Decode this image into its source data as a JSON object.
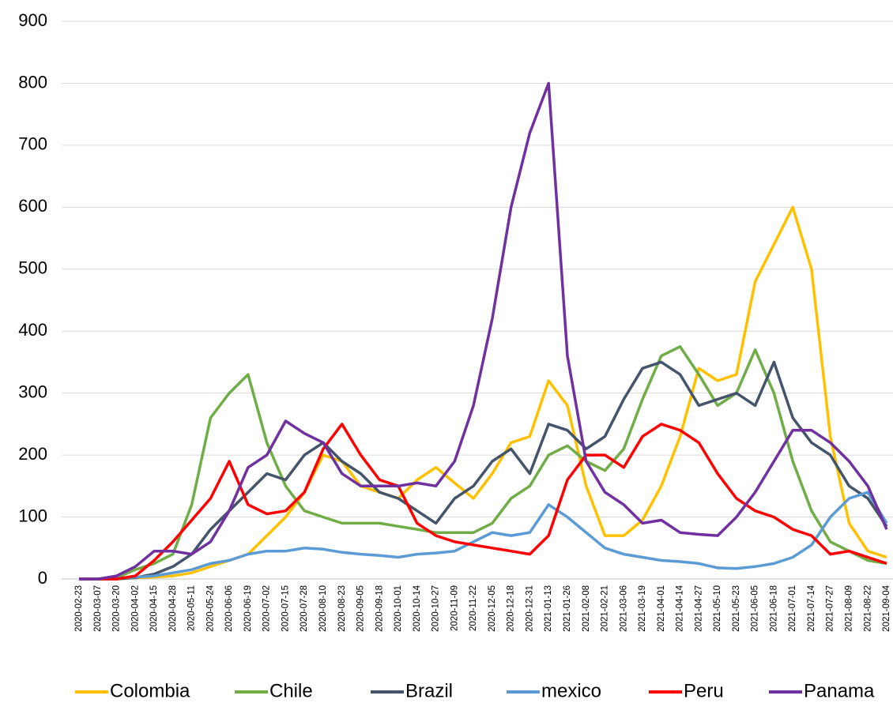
{
  "chart_data": {
    "type": "line",
    "categories": [
      "2020-02-23",
      "2020-03-07",
      "2020-03-20",
      "2020-04-02",
      "2020-04-15",
      "2020-04-28",
      "2020-05-11",
      "2020-05-24",
      "2020-06-06",
      "2020-06-19",
      "2020-07-02",
      "2020-07-15",
      "2020-07-28",
      "2020-08-10",
      "2020-08-23",
      "2020-09-05",
      "2020-09-18",
      "2020-10-01",
      "2020-10-14",
      "2020-10-27",
      "2020-11-09",
      "2020-11-22",
      "2020-12-05",
      "2020-12-18",
      "2020-12-31",
      "2021-01-13",
      "2021-01-26",
      "2021-02-08",
      "2021-02-21",
      "2021-03-06",
      "2021-03-19",
      "2021-04-01",
      "2021-04-14",
      "2021-04-27",
      "2021-05-10",
      "2021-05-23",
      "2021-06-05",
      "2021-06-18",
      "2021-07-01",
      "2021-07-14",
      "2021-07-27",
      "2021-08-09",
      "2021-08-22",
      "2021-09-04"
    ],
    "series": [
      {
        "name": "Colombia",
        "color": "#FFC000",
        "values": [
          0,
          0,
          0,
          2,
          3,
          5,
          10,
          20,
          30,
          40,
          70,
          100,
          140,
          200,
          190,
          150,
          140,
          130,
          160,
          180,
          155,
          130,
          170,
          220,
          230,
          320,
          280,
          150,
          70,
          70,
          95,
          150,
          230,
          340,
          320,
          330,
          480,
          540,
          600,
          500,
          230,
          90,
          45,
          35
        ]
      },
      {
        "name": "Chile",
        "color": "#70AD47",
        "values": [
          0,
          0,
          2,
          15,
          25,
          40,
          120,
          260,
          300,
          330,
          220,
          150,
          110,
          100,
          90,
          90,
          90,
          85,
          80,
          75,
          75,
          75,
          90,
          130,
          150,
          200,
          215,
          190,
          175,
          210,
          290,
          360,
          375,
          330,
          280,
          300,
          370,
          300,
          190,
          110,
          60,
          45,
          30,
          25
        ]
      },
      {
        "name": "Brazil",
        "color": "#44546A",
        "values": [
          0,
          0,
          0,
          2,
          8,
          20,
          40,
          80,
          110,
          140,
          170,
          160,
          200,
          220,
          190,
          170,
          140,
          130,
          110,
          90,
          130,
          150,
          190,
          210,
          170,
          250,
          240,
          210,
          230,
          290,
          340,
          350,
          330,
          280,
          290,
          300,
          280,
          350,
          260,
          220,
          200,
          150,
          130,
          85
        ]
      },
      {
        "name": "mexico",
        "color": "#5B9BD5",
        "values": [
          0,
          0,
          1,
          3,
          5,
          10,
          15,
          25,
          30,
          40,
          45,
          45,
          50,
          48,
          43,
          40,
          38,
          35,
          40,
          42,
          45,
          60,
          75,
          70,
          75,
          120,
          100,
          75,
          50,
          40,
          35,
          30,
          28,
          25,
          18,
          17,
          20,
          25,
          35,
          55,
          100,
          130,
          140,
          90
        ]
      },
      {
        "name": "Peru",
        "color": "#FF0000",
        "values": [
          0,
          0,
          0,
          5,
          30,
          60,
          95,
          130,
          190,
          120,
          105,
          110,
          140,
          210,
          250,
          200,
          160,
          150,
          90,
          70,
          60,
          55,
          50,
          45,
          40,
          70,
          160,
          200,
          200,
          180,
          230,
          250,
          240,
          220,
          170,
          130,
          110,
          100,
          80,
          70,
          40,
          45,
          35,
          25
        ]
      },
      {
        "name": "Panama",
        "color": "#7030A0",
        "values": [
          0,
          0,
          5,
          20,
          45,
          45,
          40,
          60,
          110,
          180,
          200,
          255,
          235,
          220,
          170,
          150,
          150,
          150,
          155,
          150,
          190,
          280,
          420,
          600,
          720,
          800,
          360,
          190,
          140,
          120,
          90,
          95,
          75,
          72,
          70,
          100,
          140,
          190,
          240,
          240,
          220,
          190,
          150,
          80
        ]
      }
    ],
    "ylim": [
      0,
      900
    ],
    "yticks": [
      0,
      100,
      200,
      300,
      400,
      500,
      600,
      700,
      800,
      900
    ],
    "grid": true,
    "legend": "bottom"
  }
}
